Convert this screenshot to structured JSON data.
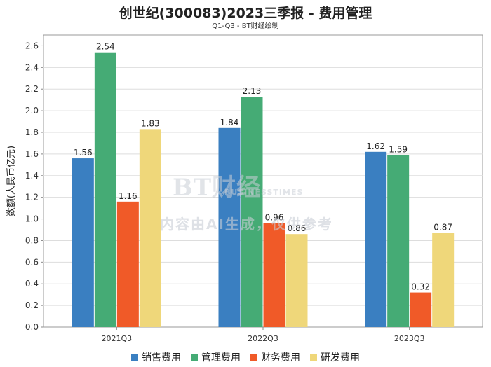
{
  "chart_data": {
    "type": "bar",
    "title": "创世纪(300083)2023三季报 - 费用管理",
    "subtitle": "Q1-Q3 - BT财经绘制",
    "xlabel": "",
    "ylabel": "数额(人民币亿元)",
    "categories": [
      "2021Q3",
      "2022Q3",
      "2023Q3"
    ],
    "series": [
      {
        "name": "销售费用",
        "color": "#3a7fc1",
        "values": [
          1.56,
          1.84,
          1.62
        ]
      },
      {
        "name": "管理费用",
        "color": "#45ab75",
        "values": [
          2.54,
          2.13,
          1.59
        ]
      },
      {
        "name": "财务费用",
        "color": "#f05a28",
        "values": [
          1.16,
          0.96,
          0.32
        ]
      },
      {
        "name": "研发费用",
        "color": "#efd77a",
        "values": [
          1.83,
          0.86,
          0.87
        ]
      }
    ],
    "ylim": [
      0,
      2.7
    ],
    "yticks": [
      "0.0",
      "0.2",
      "0.4",
      "0.6",
      "0.8",
      "1.0",
      "1.2",
      "1.4",
      "1.6",
      "1.8",
      "2.0",
      "2.2",
      "2.4",
      "2.6"
    ],
    "grid": true,
    "legend": "bottom-center"
  },
  "watermark": {
    "brand": "BT财经",
    "brand_sub": "BUSINESSTIMES",
    "note": "内容由AI生成，仅供参考"
  }
}
